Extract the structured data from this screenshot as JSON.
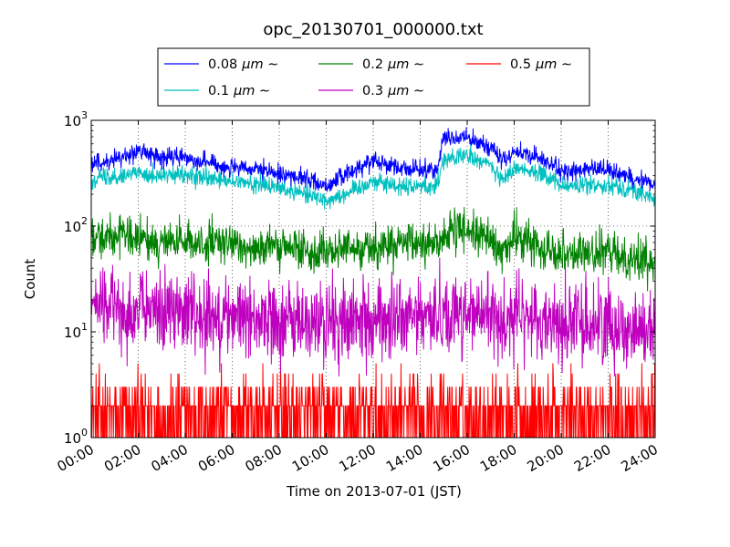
{
  "chart_data": {
    "type": "line",
    "title": "opc_20130701_000000.txt",
    "xlabel": "Time on 2013-07-01 (JST)",
    "ylabel": "Count",
    "yscale": "log",
    "ylim": [
      1,
      1000
    ],
    "xlim": [
      "00:00",
      "24:00"
    ],
    "x_ticks": [
      "00:00",
      "02:00",
      "04:00",
      "06:00",
      "08:00",
      "10:00",
      "12:00",
      "14:00",
      "16:00",
      "18:00",
      "20:00",
      "22:00",
      "24:00"
    ],
    "y_ticks": [
      {
        "base": "10",
        "exp": "0",
        "value": 1
      },
      {
        "base": "10",
        "exp": "1",
        "value": 10
      },
      {
        "base": "10",
        "exp": "2",
        "value": 100
      },
      {
        "base": "10",
        "exp": "3",
        "value": 1000
      }
    ],
    "grid": true,
    "legend_position": "top",
    "x_hours": [
      0,
      1,
      2,
      3,
      4,
      5,
      6,
      7,
      8,
      9,
      10,
      11,
      12,
      13,
      14,
      14.7,
      15,
      16,
      17,
      17.5,
      18,
      19,
      20,
      21,
      22,
      23,
      24
    ],
    "series": [
      {
        "name": "0.08",
        "unit": "μm ∼",
        "color": "#0000ff",
        "noise": 0.1,
        "values": [
          380,
          420,
          520,
          440,
          450,
          400,
          350,
          340,
          310,
          290,
          240,
          320,
          430,
          360,
          340,
          340,
          680,
          680,
          560,
          420,
          500,
          450,
          330,
          340,
          340,
          290,
          250
        ]
      },
      {
        "name": "0.1",
        "unit": "μm ∼",
        "color": "#00bfbf",
        "noise": 0.1,
        "values": [
          280,
          300,
          320,
          300,
          300,
          280,
          260,
          250,
          230,
          210,
          175,
          210,
          270,
          240,
          240,
          240,
          430,
          460,
          380,
          260,
          360,
          330,
          240,
          240,
          250,
          220,
          180
        ]
      },
      {
        "name": "0.2",
        "unit": "μm ∼",
        "color": "#008000",
        "noise": 0.22,
        "values": [
          85,
          80,
          75,
          70,
          70,
          68,
          66,
          64,
          62,
          60,
          58,
          60,
          65,
          65,
          68,
          70,
          80,
          95,
          72,
          55,
          80,
          65,
          58,
          55,
          55,
          50,
          45
        ]
      },
      {
        "name": "0.3",
        "unit": "μm ∼",
        "color": "#bf00bf",
        "noise": 0.45,
        "values": [
          18,
          17,
          16,
          16,
          15,
          15,
          14,
          14,
          13,
          12,
          12,
          12,
          13,
          13,
          14,
          14,
          15,
          15,
          14,
          13,
          14,
          13,
          12,
          12,
          12,
          11,
          10
        ]
      },
      {
        "name": "0.5",
        "unit": "μm ∼",
        "color": "#ff0000",
        "noise": 0,
        "values": [
          1.5,
          1.5,
          1.5,
          1.5,
          1.5,
          1.5,
          1.5,
          1.5,
          1.5,
          1.5,
          1.5,
          1.5,
          1.5,
          1.5,
          1.5,
          1.5,
          1.5,
          1.5,
          1.5,
          1.5,
          1.5,
          1.5,
          1.5,
          1.5,
          1.5,
          1.5,
          1.5
        ]
      }
    ]
  }
}
